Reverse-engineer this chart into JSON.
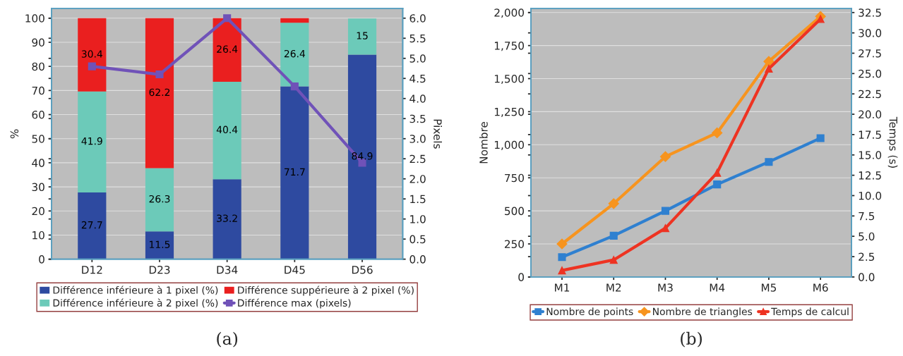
{
  "chart_data": [
    {
      "type": "bar",
      "stacked": true,
      "categories": [
        "D12",
        "D23",
        "D34",
        "D45",
        "D56"
      ],
      "ylabel": "%",
      "y2label": "Pixels",
      "ylim": [
        0,
        104
      ],
      "yticks": [
        0,
        10,
        20,
        30,
        40,
        50,
        60,
        70,
        80,
        90,
        100
      ],
      "y2lim": [
        0,
        6.24
      ],
      "y2ticks": [
        {
          "value": 0,
          "label": "0.0"
        },
        {
          "value": 0.5,
          "label": "0.5"
        },
        {
          "value": 1,
          "label": "1.0"
        },
        {
          "value": 1.5,
          "label": "1.5"
        },
        {
          "value": 2,
          "label": "2.0"
        },
        {
          "value": 2.5,
          "label": "2.5"
        },
        {
          "value": 3,
          "label": "3.0"
        },
        {
          "value": 3.5,
          "label": "3.5"
        },
        {
          "value": 4,
          "label": "4.0"
        },
        {
          "value": 4.5,
          "label": "4.5"
        },
        {
          "value": 5,
          "label": "5.0"
        },
        {
          "value": 5.5,
          "label": "5.5"
        },
        {
          "value": 6,
          "label": "6.0"
        }
      ],
      "grid": "y",
      "legend": "bottom",
      "series": [
        {
          "name": "Différence inférieure à 1 pixel (%)",
          "color": "#2e4aa0",
          "values": [
            27.7,
            11.5,
            33.2,
            71.7,
            84.9
          ],
          "value_labels": [
            "27.7",
            "11.5",
            "33.2",
            "71.7",
            "84.9"
          ]
        },
        {
          "name": "Différence inférieure à 2 pixel (%)",
          "color": "#6ccab9",
          "values": [
            41.9,
            26.3,
            40.4,
            26.4,
            15
          ],
          "value_labels": [
            "41.9",
            "26.3",
            "40.4",
            "26.4",
            "15"
          ]
        },
        {
          "name": "Différence suppérieure à 2 pixel (%)",
          "color": "#ea1f1f",
          "values": [
            30.4,
            62.2,
            26.4,
            1.9,
            null
          ],
          "value_labels": [
            "30.4",
            "62.2",
            "26.4",
            null,
            null
          ]
        },
        {
          "name": "Différence max (pixels)",
          "type": "line",
          "axis": "y2",
          "marker": "square",
          "color": "#7052b8",
          "values": [
            4.8,
            4.6,
            6.0,
            4.3,
            2.4
          ]
        }
      ],
      "annotations": [
        "(a)"
      ]
    },
    {
      "type": "line",
      "categories": [
        "M1",
        "M2",
        "M3",
        "M4",
        "M5",
        "M6"
      ],
      "ylabel": "Nombre",
      "y2label": "Temps (s)",
      "ylim": [
        0,
        2030
      ],
      "yticks": [
        0,
        250,
        500,
        750,
        {
          "value": 1000,
          "label": "1,000"
        },
        {
          "value": 1250,
          "label": "1,250"
        },
        {
          "value": 1500,
          "label": "1,500"
        },
        {
          "value": 1750,
          "label": "1,750"
        },
        {
          "value": 2000,
          "label": "2,000"
        }
      ],
      "y2lim": [
        0,
        32.99
      ],
      "y2ticks": [
        {
          "value": 0,
          "label": "0.0"
        },
        2.5,
        {
          "value": 5,
          "label": "5.0"
        },
        7.5,
        {
          "value": 10,
          "label": "10.0"
        },
        12.5,
        {
          "value": 15,
          "label": "15.0"
        },
        17.5,
        {
          "value": 20,
          "label": "20.0"
        },
        22.5,
        {
          "value": 25,
          "label": "25.0"
        },
        27.5,
        {
          "value": 30,
          "label": "30.0"
        },
        32.5
      ],
      "grid": "y",
      "legend": "bottom",
      "series": [
        {
          "name": "Nombre de points",
          "marker": "square",
          "color": "#2f80d0",
          "values": [
            150,
            312,
            500,
            700,
            870,
            1050
          ]
        },
        {
          "name": "Nombre de triangles",
          "marker": "diamond",
          "color": "#f7941e",
          "values": [
            250,
            555,
            910,
            1090,
            1630,
            1970
          ]
        },
        {
          "name": "Temps de calcul",
          "marker": "triangle",
          "axis": "y2",
          "color": "#ee3322",
          "values": [
            0.8,
            2.1,
            6.0,
            12.8,
            25.6,
            31.7
          ]
        }
      ],
      "annotations": [
        "(b)"
      ]
    }
  ]
}
